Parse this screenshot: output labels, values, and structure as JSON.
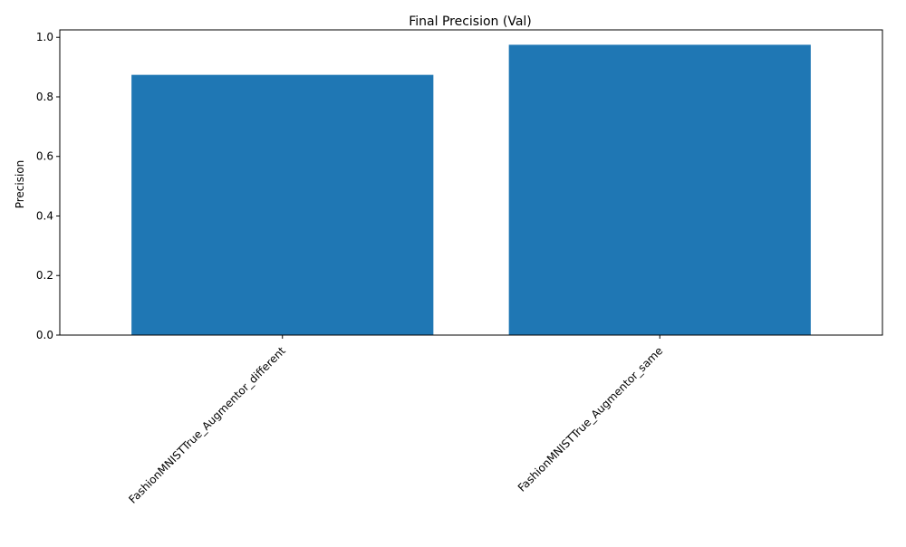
{
  "chart_data": {
    "type": "bar",
    "title": "Final Precision (Val)",
    "xlabel": "",
    "ylabel": "Precision",
    "categories": [
      "FashionMNISTTrue_Augmentor_different",
      "FashionMNISTTrue_Augmentor_same"
    ],
    "values": [
      0.874,
      0.975
    ],
    "ylim": [
      0,
      1.025
    ],
    "yticks": [
      0.0,
      0.2,
      0.4,
      0.6,
      0.8,
      1.0
    ],
    "ytick_labels": [
      "0.0",
      "0.2",
      "0.4",
      "0.6",
      "0.8",
      "1.0"
    ],
    "grid": false,
    "legend": "none",
    "bar_color": "#1f77b4"
  }
}
